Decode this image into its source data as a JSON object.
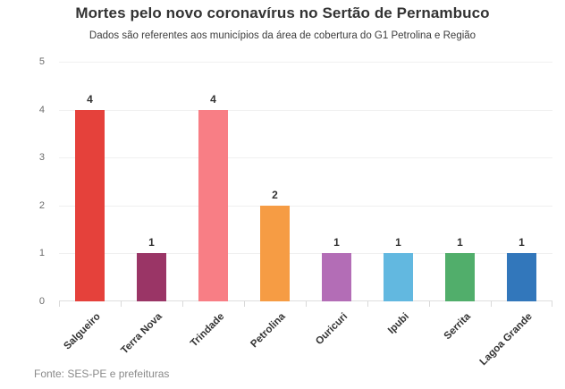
{
  "header": {
    "title": "Mortes pelo novo coronavírus no Sertão de Pernambuco",
    "subtitle": "Dados são referentes aos municípios da área de cobertura do G1 Petrolina e Região"
  },
  "chart_data": {
    "type": "bar",
    "title": "Mortes pelo novo coronavírus no Sertão de Pernambuco",
    "subtitle": "Dados são referentes aos municípios da área de cobertura do G1 Petrolina e Região",
    "categories": [
      "Salgueiro",
      "Terra Nova",
      "Trindade",
      "Petrolina",
      "Ouricuri",
      "Ipubi",
      "Serrita",
      "Lagoa Grande"
    ],
    "values": [
      4,
      1,
      4,
      2,
      1,
      1,
      1,
      1
    ],
    "bar_colors": [
      "#e5413b",
      "#9a3566",
      "#f87e85",
      "#f69c44",
      "#b36db6",
      "#62b8e0",
      "#51ae6b",
      "#3277bb"
    ],
    "xlabel": "",
    "ylabel": "",
    "ylim": [
      0,
      5
    ],
    "yticks": [
      0,
      1,
      2,
      3,
      4,
      5
    ],
    "grid": true,
    "legend": false,
    "value_labels": true
  },
  "footer": {
    "source": "Fonte: SES-PE e prefeituras"
  },
  "colors": {
    "title_text": "#333333",
    "axis_text": "#6b6b6b",
    "category_text": "#333333",
    "value_label_text": "#333333",
    "gridline": "#f0f0f0",
    "baseline": "#dedede",
    "source_text": "#8a8a8a",
    "background": "#ffffff"
  }
}
